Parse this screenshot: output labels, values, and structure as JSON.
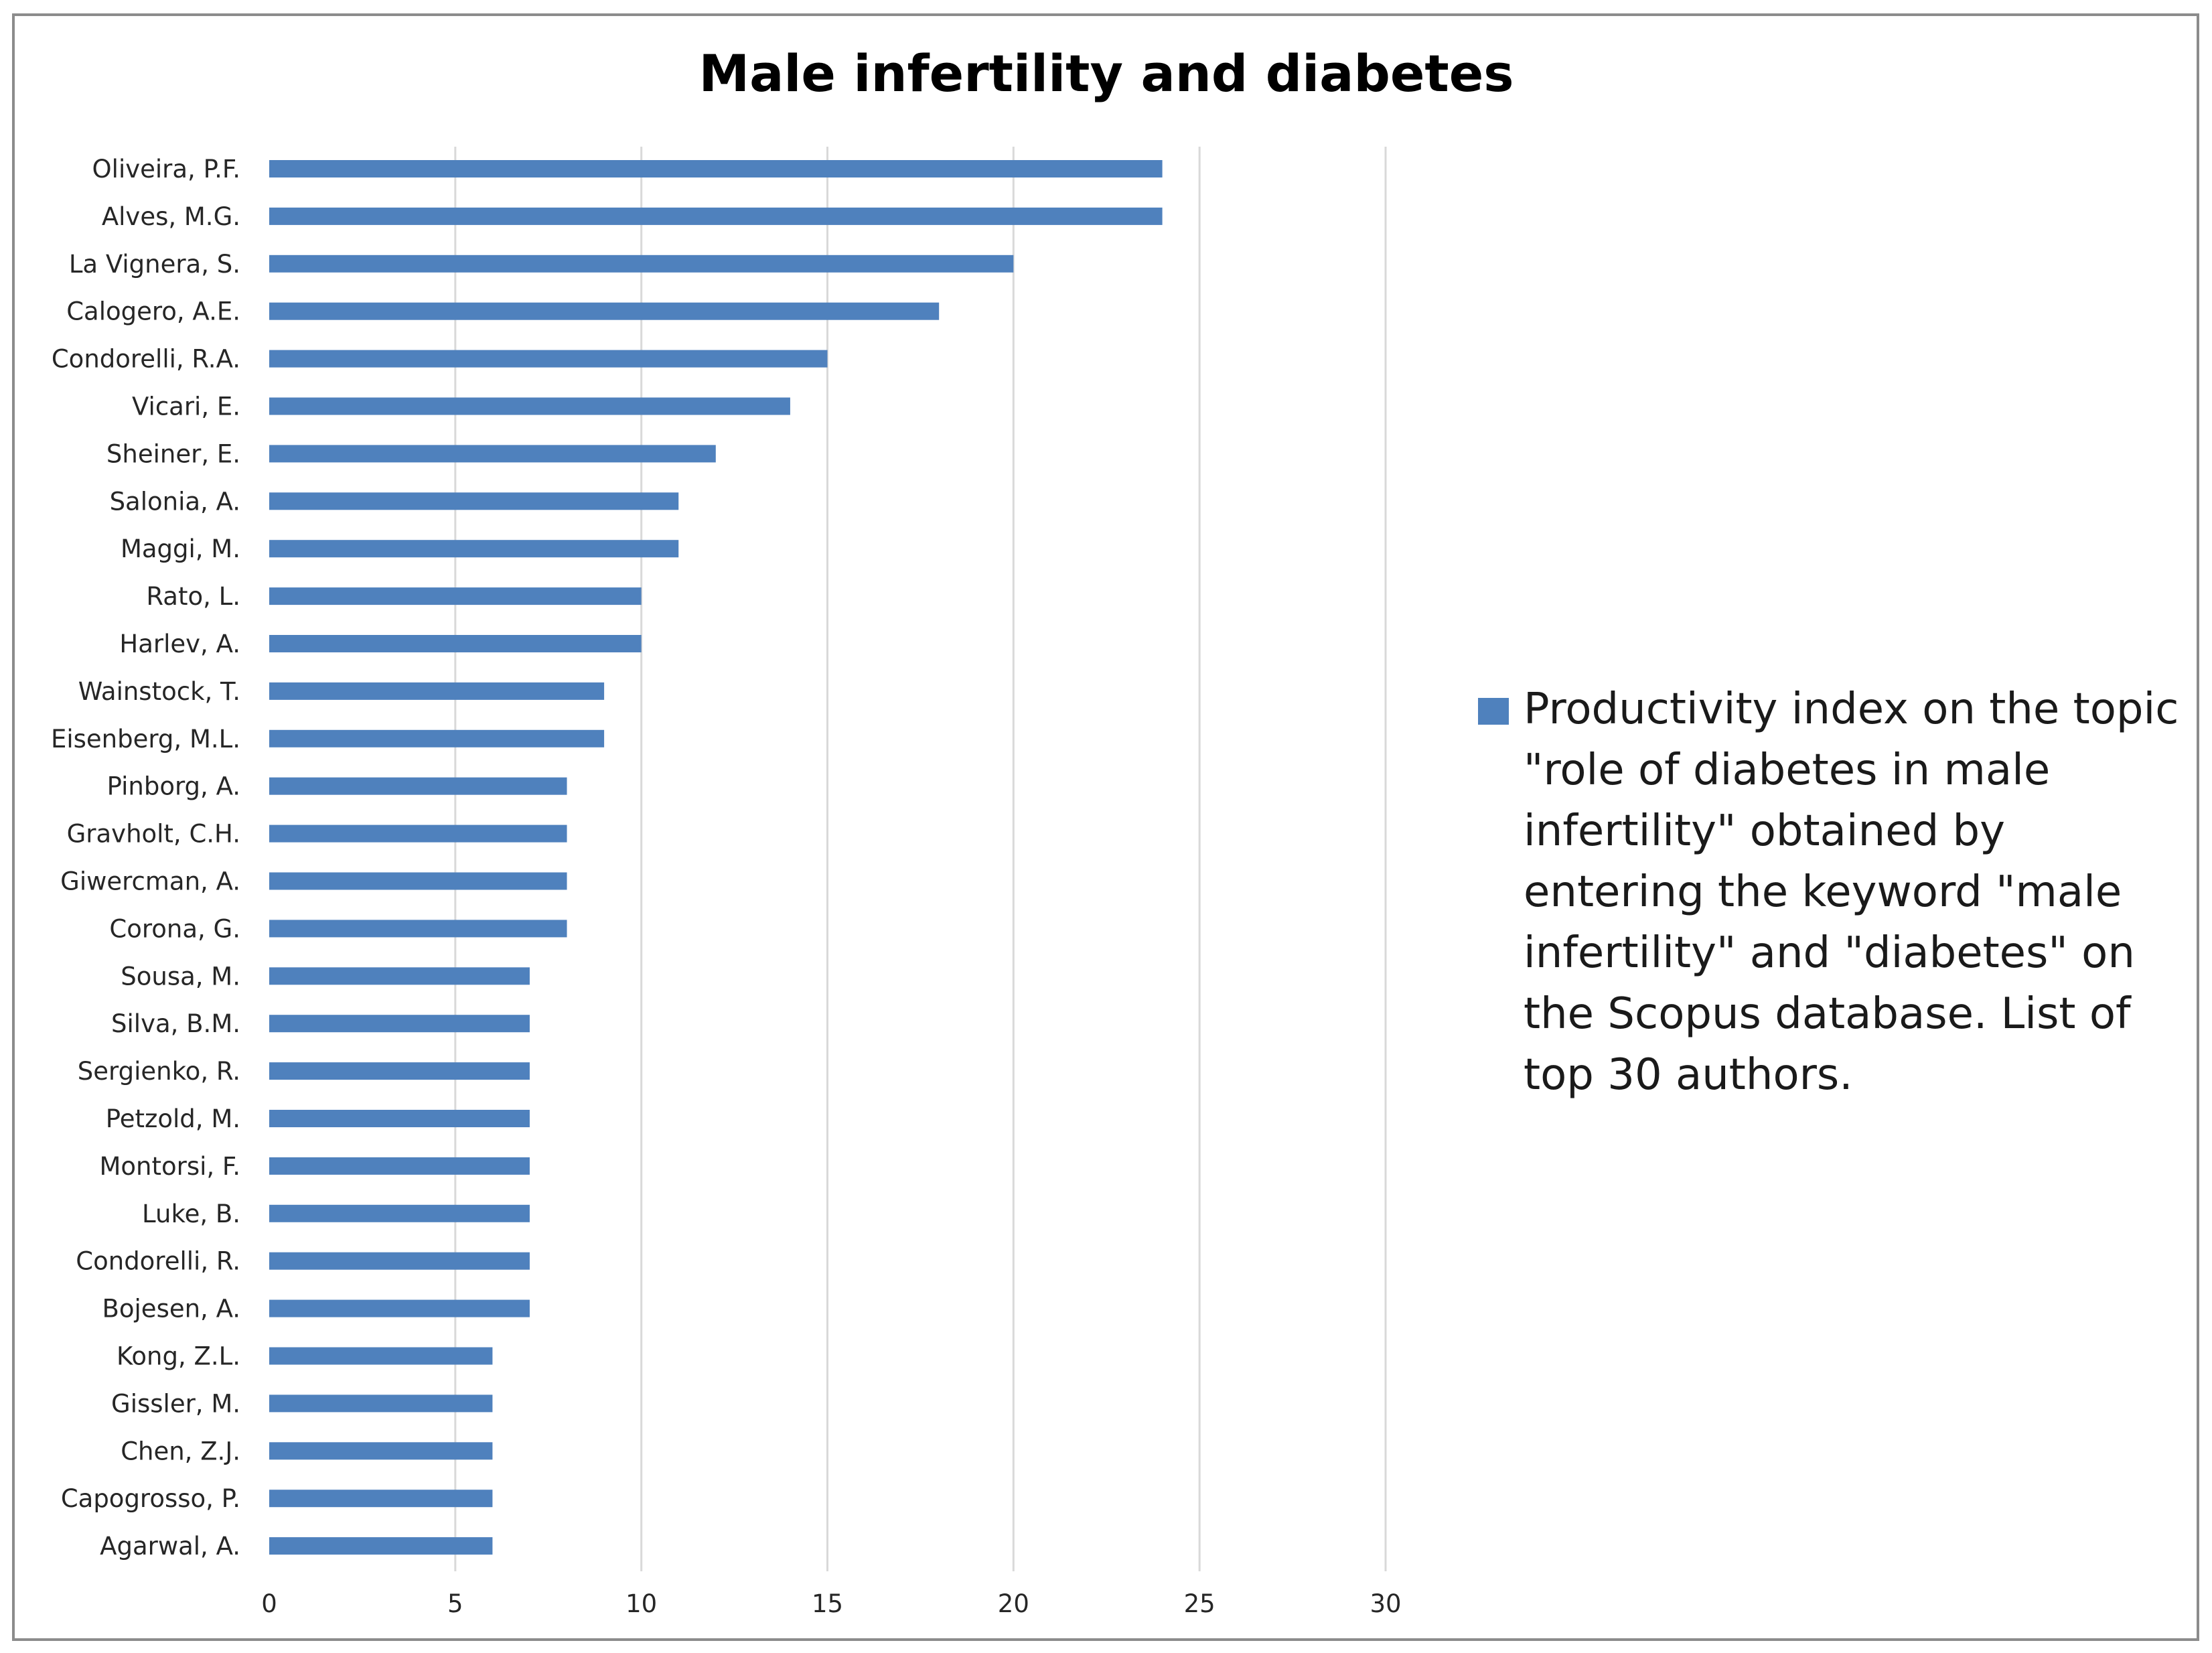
{
  "chart_data": {
    "type": "bar",
    "orientation": "horizontal",
    "title": "Male infertility and diabetes",
    "categories": [
      "Oliveira, P.F.",
      "Alves, M.G.",
      "La Vignera, S.",
      "Calogero, A.E.",
      "Condorelli, R.A.",
      "Vicari, E.",
      "Sheiner, E.",
      "Salonia, A.",
      "Maggi, M.",
      "Rato, L.",
      "Harlev, A.",
      "Wainstock, T.",
      "Eisenberg, M.L.",
      "Pinborg, A.",
      "Gravholt, C.H.",
      "Giwercman, A.",
      "Corona, G.",
      "Sousa, M.",
      "Silva, B.M.",
      "Sergienko, R.",
      "Petzold, M.",
      "Montorsi, F.",
      "Luke, B.",
      "Condorelli, R.",
      "Bojesen, A.",
      "Kong, Z.L.",
      "Gissler, M.",
      "Chen, Z.J.",
      "Capogrosso, P.",
      "Agarwal, A."
    ],
    "series": [
      {
        "name": "Productivity index on the topic \"role of diabetes in male infertility\" obtained by entering the keyword \"male infertility\" and \"diabetes\" on the Scopus database. List of top 30 authors.",
        "values": [
          24,
          24,
          20,
          18,
          15,
          14,
          12,
          11,
          11,
          10,
          10,
          9,
          9,
          8,
          8,
          8,
          8,
          7,
          7,
          7,
          7,
          7,
          7,
          7,
          7,
          6,
          6,
          6,
          6,
          6
        ]
      }
    ],
    "xlim": [
      0,
      30
    ],
    "xticks": [
      "0",
      "5",
      "10",
      "15",
      "20",
      "25",
      "30"
    ],
    "grid": true,
    "legend_position": "right",
    "bar_color": "#4f81bd",
    "grid_color": "#d9d9d9"
  }
}
